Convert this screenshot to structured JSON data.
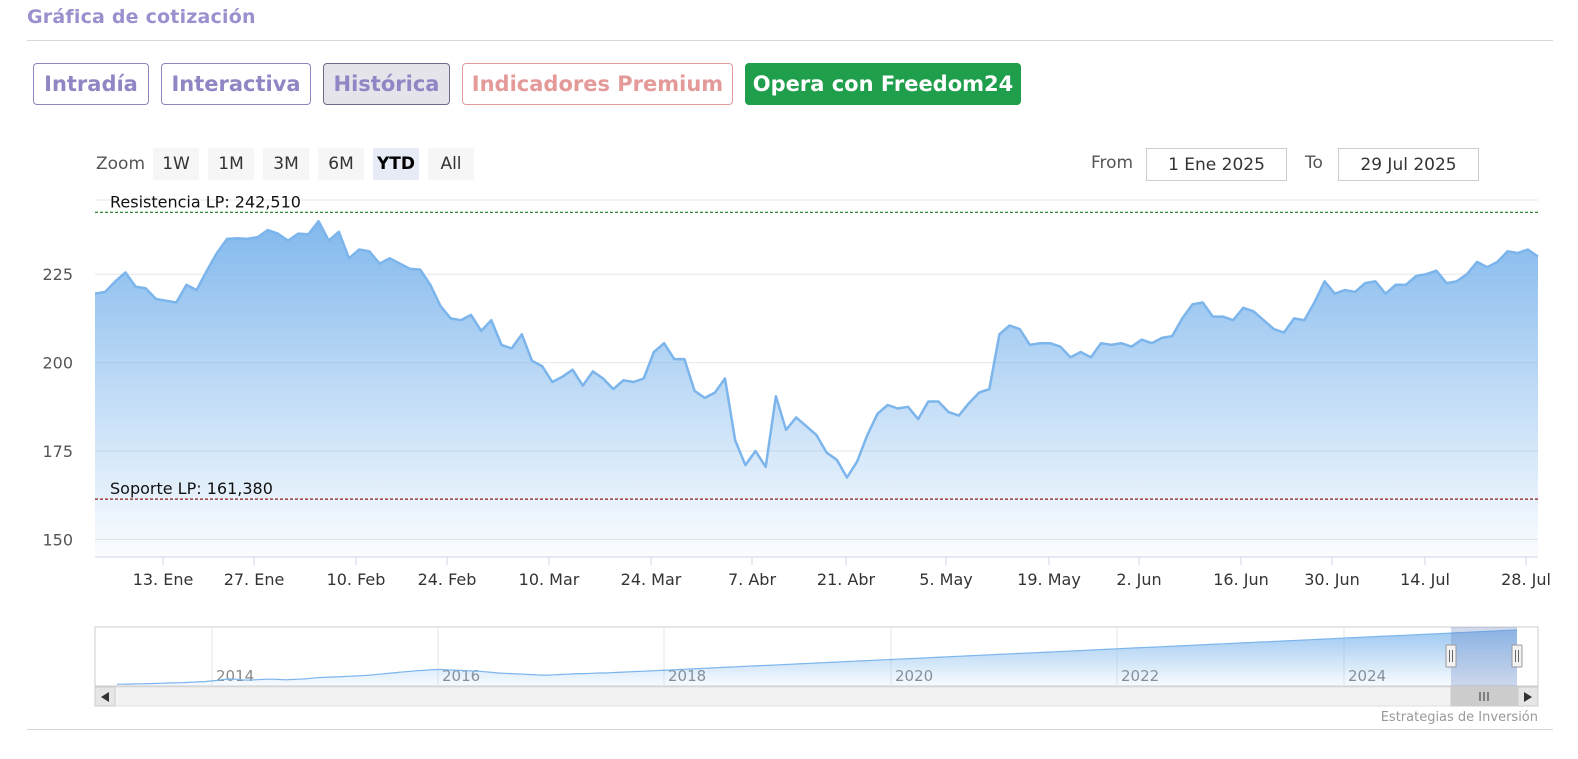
{
  "header": {
    "title": "Gráfica de cotización"
  },
  "tabs": [
    {
      "label": "Intradía",
      "state": "normal"
    },
    {
      "label": "Interactiva",
      "state": "normal"
    },
    {
      "label": "Histórica",
      "state": "active"
    },
    {
      "label": "Indicadores Premium",
      "state": "premium"
    },
    {
      "label": "Opera con Freedom24",
      "state": "cta"
    }
  ],
  "zoom": {
    "label": "Zoom",
    "buttons": [
      "1W",
      "1M",
      "3M",
      "6M",
      "YTD",
      "All"
    ],
    "selected": "YTD"
  },
  "range": {
    "from_label": "From",
    "from_value": "1 Ene 2025",
    "to_label": "To",
    "to_value": "29 Jul 2025"
  },
  "credits": "Estrategias de Inversión",
  "colors": {
    "accent": "#9b8fce",
    "series": "#7cb5ec",
    "resistance": "#1a7a1a",
    "support": "#8b1a1a",
    "cta": "#1f9e4b",
    "premium": "#e59a9a"
  },
  "chart_data": {
    "type": "area",
    "title": "",
    "xlabel": "",
    "ylabel": "",
    "ylim": [
      145,
      246
    ],
    "yticks": [
      150,
      175,
      200,
      225
    ],
    "ytick_labels": [
      "150",
      "175",
      "200",
      "225"
    ],
    "xtick_labels": [
      "13. Ene",
      "27. Ene",
      "10. Feb",
      "24. Feb",
      "10. Mar",
      "24. Mar",
      "7. Abr",
      "21. Abr",
      "5. May",
      "19. May",
      "2. Jun",
      "16. Jun",
      "30. Jun",
      "14. Jul",
      "28. Jul"
    ],
    "grid": true,
    "plot_bands": [
      {
        "name": "Resistencia LP: 242,510",
        "value": 242.51
      },
      {
        "name": "Soporte LP: 161,380",
        "value": 161.38
      }
    ],
    "series": [
      {
        "values": [
          219.5,
          220,
          223,
          225.5,
          221.5,
          221,
          218,
          217.5,
          217,
          222,
          220.5,
          226,
          231,
          235,
          235.2,
          235,
          235.5,
          237.5,
          236.5,
          234.5,
          236.5,
          236.3,
          240,
          234.5,
          237,
          229.5,
          232,
          231.5,
          228,
          229.5,
          228,
          226.5,
          226.3,
          222,
          216,
          212.5,
          212,
          213.5,
          209,
          212,
          205,
          204,
          208,
          200.5,
          199,
          194.5,
          196,
          198,
          193.5,
          197.5,
          195.5,
          192.5,
          195,
          194.5,
          195.5,
          203,
          205.5,
          201,
          201,
          192,
          190,
          191.5,
          195.5,
          178,
          171,
          175,
          170.5,
          190.5,
          181,
          184.5,
          182,
          179.5,
          174.5,
          172.5,
          167.5,
          172,
          179.5,
          185.5,
          188,
          187,
          187.5,
          184,
          189,
          189,
          186,
          185,
          188.5,
          191.5,
          192.5,
          208,
          210.5,
          209.5,
          205,
          205.5,
          205.5,
          204.5,
          201.5,
          203,
          201.5,
          205.5,
          205,
          205.5,
          204.5,
          206.5,
          205.5,
          207,
          207.5,
          212.5,
          216.5,
          217,
          213,
          213,
          212,
          215.5,
          214.5,
          212,
          209.5,
          208.5,
          212.5,
          212,
          217,
          223,
          219.5,
          220.5,
          220,
          222.5,
          223,
          219.5,
          222,
          222,
          224.5,
          225,
          226,
          222.5,
          223,
          225,
          228.5,
          227,
          228.5,
          231.5,
          231,
          232,
          230
        ]
      }
    ],
    "navigator": {
      "xtick_labels": [
        "2014",
        "2016",
        "2018",
        "2020",
        "2022",
        "2024"
      ],
      "values": [
        46,
        46,
        46.5,
        47,
        47.5,
        48,
        48.5,
        49,
        50,
        50.5,
        51,
        52,
        53,
        54,
        55,
        57,
        59,
        62,
        64,
        63,
        61,
        60,
        61,
        62,
        63,
        63,
        62,
        61,
        62,
        63,
        64,
        66,
        68,
        69,
        70,
        71,
        72,
        73,
        74,
        75,
        76,
        78,
        80,
        82,
        84,
        86,
        88,
        90,
        92,
        93,
        95,
        96,
        96,
        95,
        94,
        93,
        92,
        91,
        90,
        88,
        86,
        84,
        83,
        82,
        81,
        80,
        79,
        78,
        77,
        77,
        78,
        79,
        80,
        81,
        82,
        82,
        83,
        84,
        84,
        85,
        86,
        87,
        88,
        89,
        90,
        91,
        92,
        93,
        94,
        95,
        96,
        97,
        98,
        99,
        100,
        101,
        102,
        103,
        104,
        105,
        106,
        107,
        108,
        109,
        110,
        111,
        112,
        113,
        114,
        115,
        116,
        117,
        118,
        119,
        120,
        121,
        122,
        123,
        124,
        125,
        126,
        127,
        128,
        129,
        130,
        131,
        132,
        133,
        134,
        135,
        136,
        137,
        138,
        139,
        140,
        141,
        142,
        143,
        144,
        145,
        146,
        147,
        148,
        149,
        150,
        151,
        152,
        153,
        154,
        155,
        156,
        157,
        158,
        159,
        160,
        161,
        162,
        163,
        164,
        165,
        166,
        167,
        168,
        169,
        170,
        171,
        172,
        173,
        174,
        175,
        176,
        177,
        178,
        179,
        180,
        181,
        182,
        183,
        184,
        185,
        186,
        187,
        188,
        189,
        190,
        191,
        192,
        193,
        194,
        195,
        196,
        197,
        198,
        199,
        200,
        201,
        202,
        203,
        204,
        205,
        206,
        207,
        208,
        209,
        210,
        211,
        212,
        213,
        214,
        215,
        216,
        217,
        218,
        219,
        220,
        221,
        222,
        223,
        224,
        225,
        226,
        227,
        228,
        229,
        230
      ],
      "ylim": [
        40,
        240
      ]
    }
  }
}
